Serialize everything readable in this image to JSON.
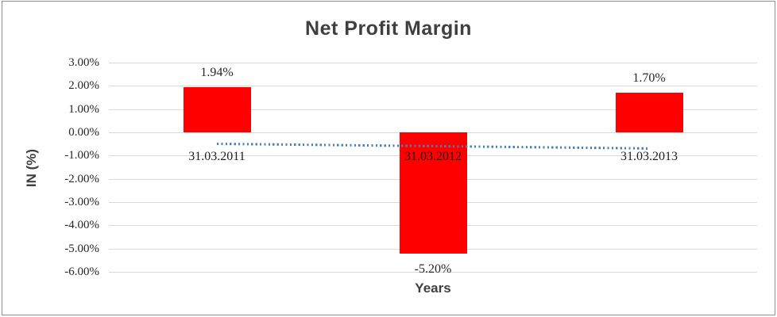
{
  "chart_data": {
    "type": "bar",
    "title": "Net Profit Margin",
    "xlabel": "Years",
    "ylabel": "IN (%)",
    "categories": [
      "31.03.2011",
      "31.03.2012",
      "31.03.2013"
    ],
    "values": [
      1.94,
      -5.2,
      1.7
    ],
    "data_labels": [
      "1.94%",
      "-5.20%",
      "1.70%"
    ],
    "bar_color": "#ff0000",
    "ylim": [
      -6,
      3
    ],
    "y_tick_step": 1,
    "y_ticks": [
      {
        "value": 3,
        "label": "3.00%"
      },
      {
        "value": 2,
        "label": "2.00%"
      },
      {
        "value": 1,
        "label": "1.00%"
      },
      {
        "value": 0,
        "label": "0.00%"
      },
      {
        "value": -1,
        "label": "-1.00%"
      },
      {
        "value": -2,
        "label": "-2.00%"
      },
      {
        "value": -3,
        "label": "-3.00%"
      },
      {
        "value": -4,
        "label": "-4.00%"
      },
      {
        "value": -5,
        "label": "-5.00%"
      },
      {
        "value": -6,
        "label": "-6.00%"
      }
    ],
    "grid": true,
    "legend": "none",
    "gridline_color": "#d9d9d9",
    "trendline": {
      "type": "linear",
      "style": "dotted",
      "color": "#4a7ebb",
      "start_value": -0.48,
      "end_value": -0.68
    }
  }
}
